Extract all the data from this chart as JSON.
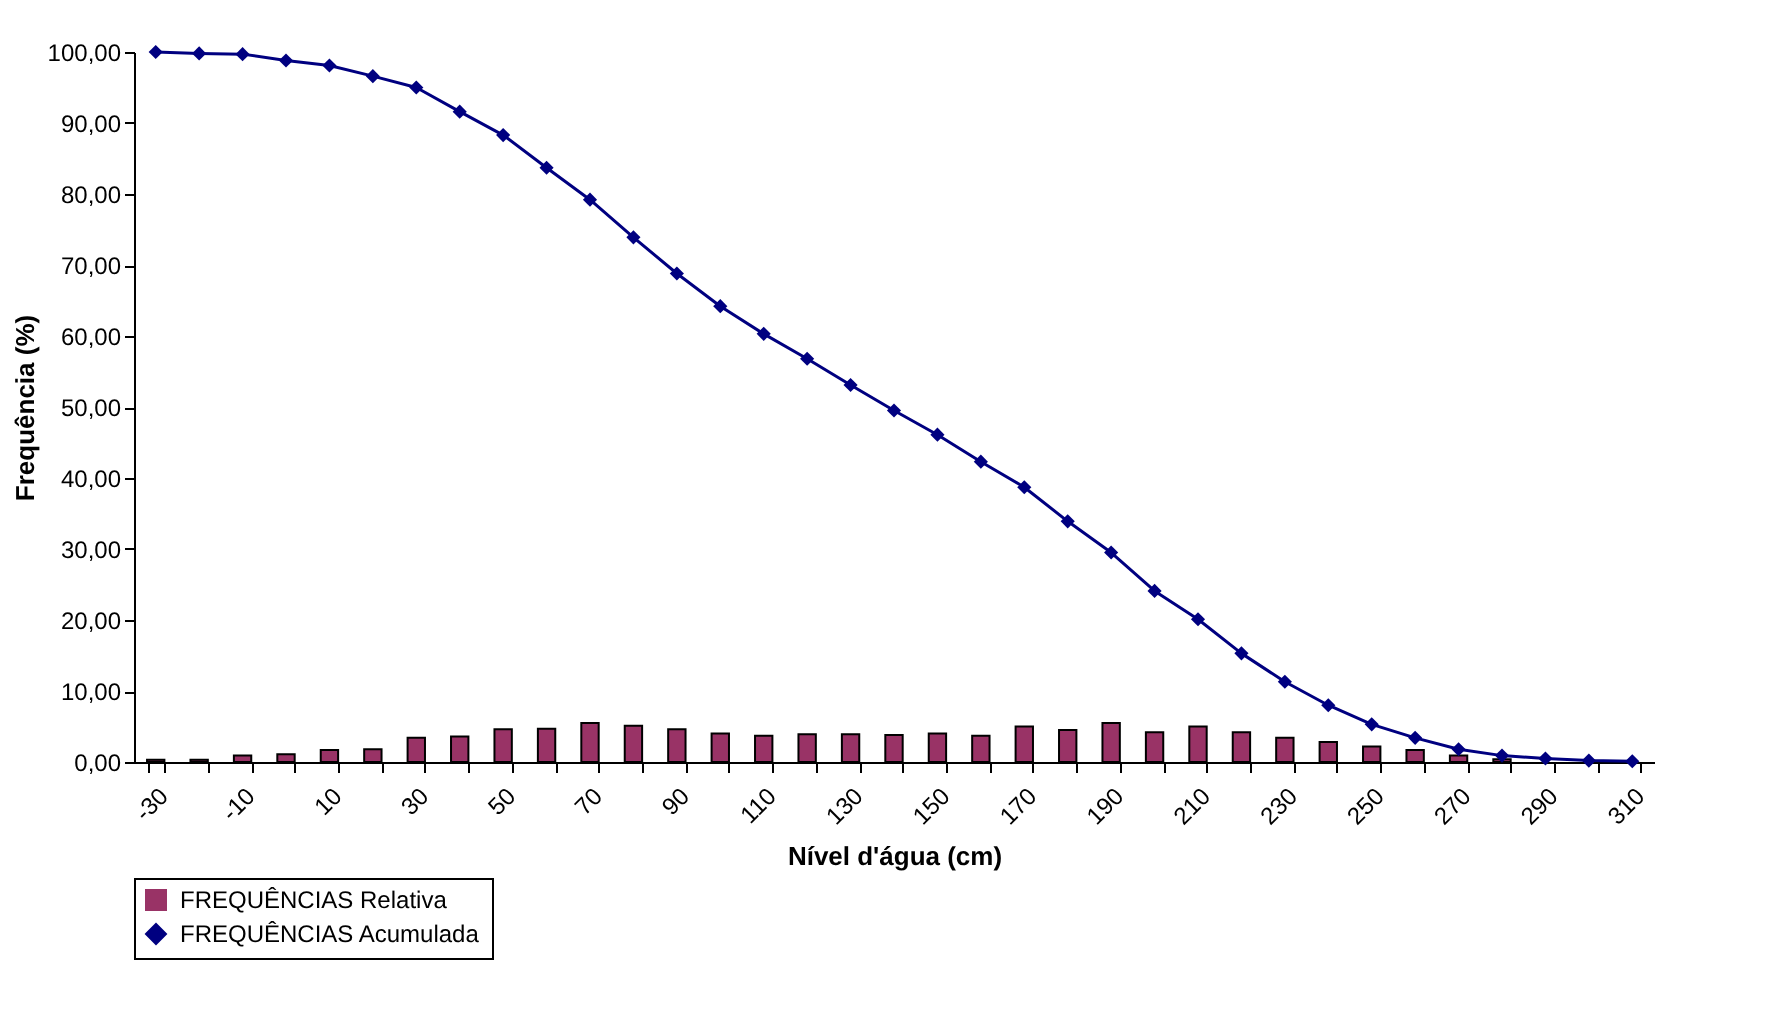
{
  "chart_data": {
    "type": "bar",
    "xlabel": "Nível d'água (cm)",
    "ylabel": "Frequência (%)",
    "categories": [
      "-30",
      null,
      "-10",
      null,
      "10",
      null,
      "30",
      null,
      "50",
      null,
      "70",
      null,
      "90",
      null,
      "110",
      null,
      "130",
      null,
      "150",
      null,
      "170",
      null,
      "190",
      null,
      "210",
      null,
      "230",
      null,
      "250",
      null,
      "270",
      null,
      "290",
      null,
      "310"
    ],
    "series": [
      {
        "name": "FREQUÊNCIAS Relativa",
        "color": "#993366",
        "values": [
          0.3,
          0.3,
          0.9,
          1.1,
          1.7,
          1.8,
          3.4,
          3.6,
          4.6,
          4.7,
          5.5,
          5.1,
          4.6,
          4.0,
          3.7,
          3.9,
          3.9,
          3.8,
          4.0,
          3.7,
          5.0,
          4.5,
          5.5,
          4.2,
          5.0,
          4.2,
          3.4,
          2.8,
          2.2,
          1.7,
          0.9,
          0.4,
          null,
          null,
          null
        ]
      },
      {
        "name": "FREQUÊNCIAS Acumulada",
        "type": "line",
        "color": "#000080",
        "marker": "diamond",
        "values": [
          100,
          99.8,
          99.7,
          98.8,
          98.1,
          96.6,
          95.0,
          91.6,
          88.3,
          83.7,
          79.2,
          73.9,
          68.8,
          64.2,
          60.3,
          56.8,
          53.1,
          49.5,
          46.1,
          42.3,
          38.7,
          33.9,
          29.5,
          24.1,
          20.1,
          15.3,
          11.3,
          8.0,
          5.3,
          3.4,
          1.8,
          0.9,
          0.5,
          0.2,
          0.1
        ]
      }
    ],
    "ylim": [
      0,
      100
    ],
    "yticks": [
      {
        "value": 0,
        "label": "0,00"
      },
      {
        "value": 10,
        "label": "10,00"
      },
      {
        "value": 20,
        "label": "20,00"
      },
      {
        "value": 30,
        "label": "30,00"
      },
      {
        "value": 40,
        "label": "40,00"
      },
      {
        "value": 50,
        "label": "50,00"
      },
      {
        "value": 60,
        "label": "60,00"
      },
      {
        "value": 70,
        "label": "70,00"
      },
      {
        "value": 80,
        "label": "80,00"
      },
      {
        "value": 90,
        "label": "90,00"
      },
      {
        "value": 100,
        "label": "100,00"
      }
    ],
    "grid": false,
    "legend": "bottom left"
  }
}
